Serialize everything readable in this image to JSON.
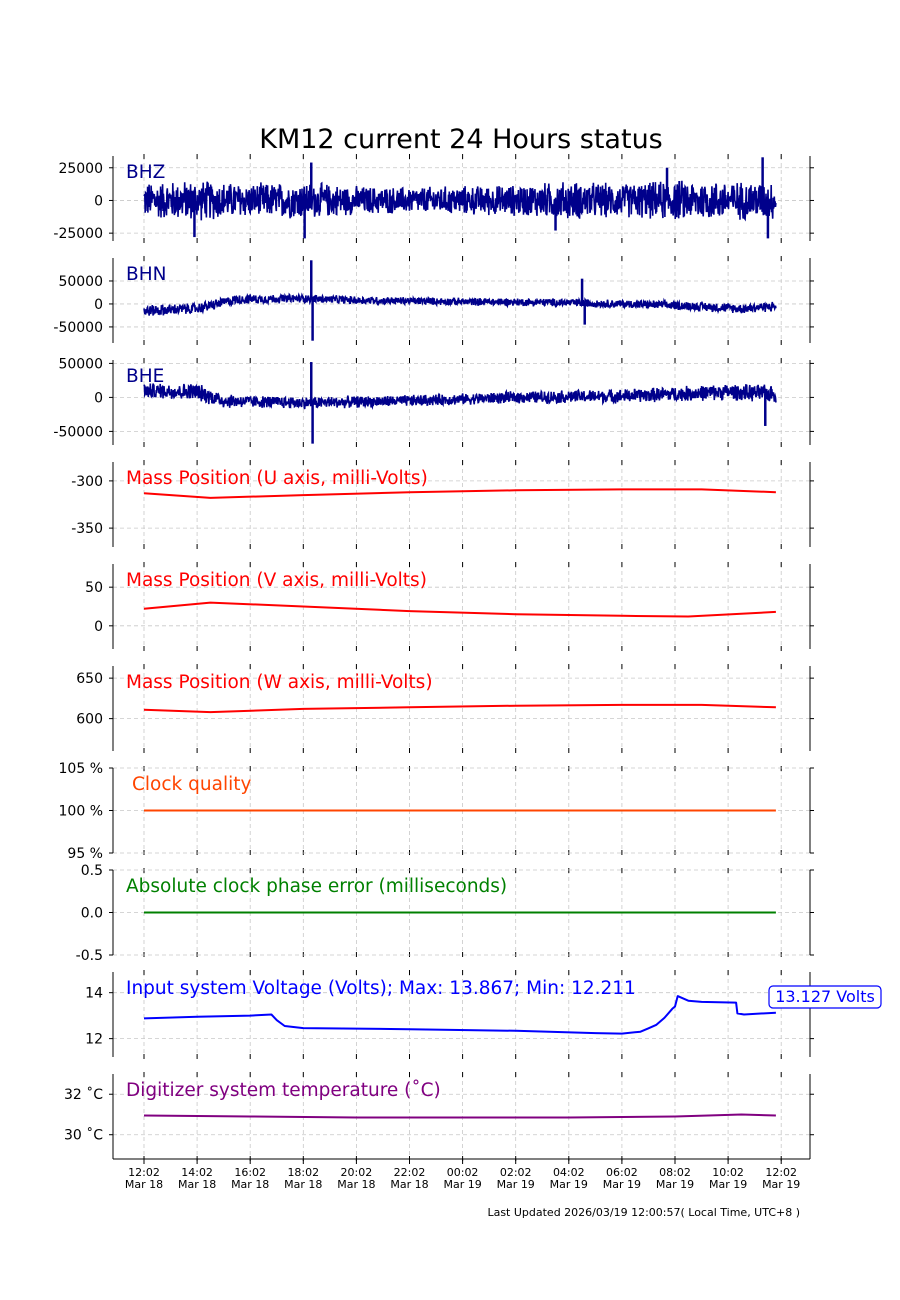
{
  "title": "KM12 current 24 Hours status",
  "footer": "Last Updated 2026/03/19 12:00:57( Local Time, UTC+8 )",
  "x_axis": {
    "ticks": [
      {
        "time": "12:02",
        "date": "Mar 18"
      },
      {
        "time": "14:02",
        "date": "Mar 18"
      },
      {
        "time": "16:02",
        "date": "Mar 18"
      },
      {
        "time": "18:02",
        "date": "Mar 18"
      },
      {
        "time": "20:02",
        "date": "Mar 18"
      },
      {
        "time": "22:02",
        "date": "Mar 18"
      },
      {
        "time": "00:02",
        "date": "Mar 19"
      },
      {
        "time": "02:02",
        "date": "Mar 19"
      },
      {
        "time": "04:02",
        "date": "Mar 19"
      },
      {
        "time": "06:02",
        "date": "Mar 19"
      },
      {
        "time": "08:02",
        "date": "Mar 19"
      },
      {
        "time": "10:02",
        "date": "Mar 19"
      },
      {
        "time": "12:02",
        "date": "Mar 19"
      }
    ]
  },
  "chart_data": [
    {
      "type": "line",
      "label": "BHZ",
      "color": "#00008b",
      "signal": "noise",
      "ylim": [
        -31000,
        34000
      ],
      "yticks": [
        {
          "v": 25000,
          "t": "25000"
        },
        {
          "v": 0,
          "t": "0"
        },
        {
          "v": -25000,
          "t": "-25000"
        }
      ],
      "amplitude_by_hour": [
        [
          0,
          15000
        ],
        [
          2,
          17000
        ],
        [
          4,
          14000
        ],
        [
          6,
          15500
        ],
        [
          8,
          12000
        ],
        [
          10,
          11000
        ],
        [
          12,
          12000
        ],
        [
          14,
          13000
        ],
        [
          16,
          16000
        ],
        [
          18,
          14000
        ],
        [
          20,
          17000
        ],
        [
          22,
          16000
        ],
        [
          23.8,
          16000
        ]
      ],
      "spikes": [
        [
          1.9,
          -28000
        ],
        [
          6.05,
          -29000
        ],
        [
          6.3,
          29000
        ],
        [
          15.5,
          -23000
        ],
        [
          19.7,
          25000
        ],
        [
          23.3,
          33000
        ],
        [
          23.5,
          -29000
        ]
      ],
      "x": [
        0,
        23.8
      ]
    },
    {
      "type": "line",
      "label": "BHN",
      "color": "#00008b",
      "signal": "noise",
      "ylim": [
        -85000,
        100000
      ],
      "yticks": [
        {
          "v": 50000,
          "t": "50000"
        },
        {
          "v": 0,
          "t": "0"
        },
        {
          "v": -50000,
          "t": "-50000"
        }
      ],
      "trend": [
        [
          0,
          -15000
        ],
        [
          2,
          -10000
        ],
        [
          3.5,
          10000
        ],
        [
          6,
          12000
        ],
        [
          8,
          8000
        ],
        [
          12,
          5000
        ],
        [
          16,
          3000
        ],
        [
          20,
          -3000
        ],
        [
          22.5,
          -10000
        ],
        [
          23.8,
          -5000
        ]
      ],
      "amplitude_by_hour": [
        [
          0,
          14000
        ],
        [
          3,
          12000
        ],
        [
          6,
          10000
        ],
        [
          12,
          9000
        ],
        [
          18,
          10000
        ],
        [
          23.8,
          12000
        ]
      ],
      "spikes": [
        [
          6.3,
          95000
        ],
        [
          6.35,
          -80000
        ],
        [
          16.5,
          55000
        ],
        [
          16.6,
          -45000
        ]
      ],
      "x": [
        0,
        23.8
      ]
    },
    {
      "type": "line",
      "label": "BHE",
      "color": "#00008b",
      "signal": "noise",
      "ylim": [
        -70000,
        55000
      ],
      "yticks": [
        {
          "v": 50000,
          "t": "50000"
        },
        {
          "v": 0,
          "t": "0"
        },
        {
          "v": -50000,
          "t": "-50000"
        }
      ],
      "trend": [
        [
          0,
          10000
        ],
        [
          2,
          8000
        ],
        [
          3,
          -5000
        ],
        [
          6,
          -8000
        ],
        [
          10,
          -5000
        ],
        [
          14,
          0
        ],
        [
          18,
          2000
        ],
        [
          22,
          8000
        ],
        [
          23.8,
          5000
        ]
      ],
      "amplitude_by_hour": [
        [
          0,
          12000
        ],
        [
          2,
          14000
        ],
        [
          4,
          10000
        ],
        [
          12,
          9000
        ],
        [
          20,
          12000
        ],
        [
          23.8,
          14000
        ]
      ],
      "spikes": [
        [
          6.3,
          52000
        ],
        [
          6.35,
          -68000
        ],
        [
          23.4,
          -42000
        ]
      ],
      "x": [
        0,
        23.8
      ]
    },
    {
      "type": "line",
      "label": "Mass Position (U axis, milli-Volts)",
      "color": "#ff0000",
      "ylim": [
        -370,
        -280
      ],
      "yticks": [
        {
          "v": -300,
          "t": "-300"
        },
        {
          "v": -350,
          "t": "-350"
        }
      ],
      "x": [
        0,
        2.5,
        6,
        10,
        14,
        18,
        21,
        23.8
      ],
      "y": [
        -313,
        -318,
        -315,
        -312,
        -310,
        -309,
        -309,
        -312
      ]
    },
    {
      "type": "line",
      "label": "Mass Position (V axis, milli-Volts)",
      "color": "#ff0000",
      "ylim": [
        -30,
        80
      ],
      "yticks": [
        {
          "v": 50,
          "t": "50"
        },
        {
          "v": 0,
          "t": "0"
        }
      ],
      "x": [
        0,
        2.5,
        6,
        10,
        14,
        18,
        20.5,
        23.8
      ],
      "y": [
        22,
        30,
        25,
        19,
        15,
        13,
        12,
        18
      ]
    },
    {
      "type": "line",
      "label": "Mass Position (W axis, milli-Volts)",
      "color": "#ff0000",
      "ylim": [
        560,
        665
      ],
      "yticks": [
        {
          "v": 650,
          "t": "650"
        },
        {
          "v": 600,
          "t": "600"
        }
      ],
      "x": [
        0,
        2.5,
        6,
        10,
        14,
        18,
        21,
        23.8
      ],
      "y": [
        611,
        608,
        612,
        614,
        616,
        617,
        617,
        614
      ]
    },
    {
      "type": "line",
      "label": "Clock quality",
      "color": "#ff4500",
      "ylim": [
        95,
        105
      ],
      "yticks": [
        {
          "v": 105,
          "t": "105 %"
        },
        {
          "v": 100,
          "t": "100 %"
        },
        {
          "v": 95,
          "t": "95 %"
        }
      ],
      "x": [
        0,
        23.8
      ],
      "y": [
        100,
        100
      ]
    },
    {
      "type": "line",
      "label": "Absolute clock phase error (milliseconds)",
      "color": "#008000",
      "ylim": [
        -0.5,
        0.5
      ],
      "yticks": [
        {
          "v": 0.5,
          "t": "0.5"
        },
        {
          "v": 0,
          "t": "0.0"
        },
        {
          "v": -0.5,
          "t": "-0.5"
        }
      ],
      "x": [
        0,
        23.8
      ],
      "y": [
        0,
        0
      ]
    },
    {
      "type": "line",
      "label": "Input system Voltage (Volts);    Max: 13.867; Min: 12.211",
      "color": "#0000ff",
      "ylim": [
        11.2,
        14.9
      ],
      "yticks": [
        {
          "v": 14,
          "t": "14"
        },
        {
          "v": 12,
          "t": "12"
        }
      ],
      "annotation": "13.127 Volts",
      "x": [
        0,
        2,
        4,
        4.8,
        5.0,
        5.3,
        6,
        10,
        14,
        17,
        18,
        18.7,
        19.0,
        19.3,
        19.6,
        19.9,
        20.0,
        20.1,
        20.5,
        21,
        22.3,
        22.35,
        22.6,
        23.8
      ],
      "y": [
        12.88,
        12.95,
        13.0,
        13.05,
        12.8,
        12.55,
        12.46,
        12.41,
        12.34,
        12.24,
        12.22,
        12.3,
        12.45,
        12.6,
        12.9,
        13.3,
        13.4,
        13.85,
        13.65,
        13.6,
        13.57,
        13.1,
        13.05,
        13.13
      ]
    },
    {
      "type": "line",
      "label": "Digitizer system temperature ($^\\circ$C)",
      "display_label": "Digitizer system temperature (˚C)",
      "color": "#800080",
      "ylim": [
        28.8,
        33.0
      ],
      "yticks": [
        {
          "v": 32,
          "t": "32 ˚C"
        },
        {
          "v": 30,
          "t": "30 ˚C"
        }
      ],
      "x": [
        0,
        4,
        8,
        12,
        16,
        20,
        22.5,
        23.8
      ],
      "y": [
        30.95,
        30.9,
        30.85,
        30.85,
        30.85,
        30.9,
        31.0,
        30.95
      ]
    }
  ]
}
